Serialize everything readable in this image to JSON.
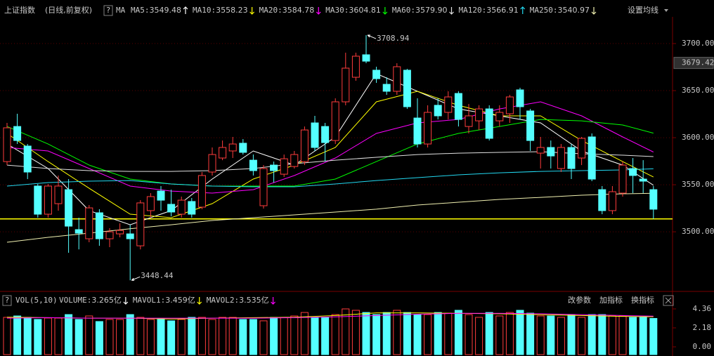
{
  "chart_data": [
    {
      "type": "candlestick",
      "title": "上证指数",
      "subtitle": "(日线,前复权)",
      "help": "?",
      "ma_title": "MA",
      "ma_settings": "设置均线",
      "up_color": "#ff3c3c",
      "down_color": "#54ffff",
      "open": [
        3574.6,
        3611.9,
        3591.1,
        3548.6,
        3518.7,
        3529.9,
        3544.8,
        3502.3,
        3492.6,
        3520.2,
        3492.6,
        3497.8,
        3497.8,
        3485.1,
        3522.5,
        3543.3,
        3529.2,
        3518.7,
        3532.2,
        3526.2,
        3563.5,
        3578.4,
        3585.9,
        3594.1,
        3576.1,
        3527.7,
        3570.9,
        3561.2,
        3569.4,
        3574.6,
        3615.7,
        3611.9,
        3597,
        3638.1,
        3664.2,
        3688.1,
        3671.7,
        3656.7,
        3649.3,
        3671.7,
        3620.9,
        3593.3,
        3634.4,
        3626.9,
        3647,
        3611.9,
        3617.9,
        3630.6,
        3617.9,
        3625.4,
        3650.8,
        3628.4,
        3583.6,
        3589.6,
        3567.2,
        3589.6,
        3578.4,
        3600.8,
        3544.8,
        3522.5,
        3541.1,
        3567.2,
        3556,
        3544.8
      ],
      "high": [
        3615.7,
        3625.4,
        3593.3,
        3550.8,
        3550.8,
        3559.8,
        3556,
        3515,
        3528.4,
        3524,
        3503.8,
        3509,
        3507.5,
        3533.6,
        3541.1,
        3548.6,
        3544.8,
        3537.4,
        3535.9,
        3563.5,
        3589.6,
        3597,
        3600.8,
        3598.5,
        3582.1,
        3570.9,
        3574.6,
        3582.1,
        3585.9,
        3611.9,
        3623.2,
        3615.7,
        3641.8,
        3690.3,
        3690.3,
        3708.94,
        3675.4,
        3664.2,
        3679.1,
        3673.1,
        3641.8,
        3634.4,
        3641.8,
        3649.3,
        3649.3,
        3635.8,
        3634.4,
        3634.4,
        3634.4,
        3645.5,
        3653,
        3630.6,
        3600.8,
        3597,
        3593.3,
        3593.3,
        3600.8,
        3604.5,
        3548.6,
        3548.6,
        3574.6,
        3578.4,
        3576.1,
        3548.6
      ],
      "low": [
        3570.9,
        3593.3,
        3556,
        3515,
        3515,
        3522.5,
        3477.7,
        3481.3,
        3488.9,
        3485.1,
        3483.7,
        3494.1,
        3448.44,
        3481.3,
        3515,
        3522.5,
        3516.5,
        3515,
        3515,
        3524,
        3559.8,
        3576.1,
        3578.4,
        3582.1,
        3559.8,
        3524.7,
        3552.3,
        3558.3,
        3567.2,
        3570.9,
        3585.9,
        3574.6,
        3593.3,
        3634.4,
        3660.5,
        3679.1,
        3658.2,
        3645.5,
        3645.5,
        3630.6,
        3589.6,
        3589.6,
        3619.4,
        3619.4,
        3611.9,
        3604.5,
        3608.2,
        3597,
        3611.9,
        3615.7,
        3619.4,
        3585.9,
        3567.2,
        3567.2,
        3563.5,
        3556,
        3570.9,
        3553.8,
        3518.7,
        3518.7,
        3537.4,
        3541.1,
        3541.1,
        3513.7
      ],
      "close": [
        3610.5,
        3597,
        3563.5,
        3518.7,
        3548.6,
        3548.6,
        3506,
        3498.6,
        3525.4,
        3492.6,
        3500,
        3501.5,
        3492.6,
        3530.7,
        3537.4,
        3533.6,
        3521,
        3533.6,
        3518.7,
        3559.8,
        3582.1,
        3589.6,
        3593.3,
        3584.4,
        3565,
        3567.2,
        3565,
        3577.6,
        3582.1,
        3608.2,
        3589.6,
        3594.8,
        3638.1,
        3673.9,
        3686.6,
        3681.3,
        3662.7,
        3649.3,
        3675.4,
        3632.9,
        3593.3,
        3626.9,
        3623.2,
        3643.3,
        3619.4,
        3623.2,
        3630.6,
        3599.3,
        3626.9,
        3643.3,
        3632.9,
        3597,
        3589.6,
        3580.6,
        3589.6,
        3567.2,
        3599.3,
        3556,
        3522.5,
        3542.6,
        3570.9,
        3559.8,
        3553.8,
        3524
      ],
      "ylim": [
        3438.9,
        3725.4
      ],
      "yticks": [
        {
          "value": 3700,
          "label": "3700.00"
        },
        {
          "value": 3650,
          "label": "3650.00"
        },
        {
          "value": 3600,
          "label": "3600.00"
        },
        {
          "value": 3550,
          "label": "3550.00"
        },
        {
          "value": 3500,
          "label": "3500.00"
        }
      ],
      "grid": true,
      "current_price": 3679.42,
      "reference_line": {
        "value": 3513.7,
        "color": "#ffff00"
      },
      "lines": [
        {
          "name": "MA5",
          "label": "MA5:",
          "color": "#ffffff",
          "trend": "up",
          "current": 3549.48,
          "x": [
            0,
            4,
            8,
            12,
            16,
            20,
            24,
            28,
            32,
            36,
            40,
            44,
            48,
            52,
            56,
            60,
            63
          ],
          "values": [
            3593.3,
            3567.2,
            3522.5,
            3507.5,
            3522.5,
            3556,
            3585.9,
            3570.9,
            3600.8,
            3668,
            3649.3,
            3630.6,
            3623.2,
            3615.7,
            3585.9,
            3570.9,
            3549.48
          ]
        },
        {
          "name": "MA10",
          "label": "MA10:",
          "color": "#ffff00",
          "trend": "down",
          "current": 3558.23,
          "x": [
            0,
            4,
            8,
            12,
            16,
            20,
            24,
            28,
            32,
            36,
            40,
            44,
            48,
            52,
            56,
            60,
            63
          ],
          "values": [
            3604.5,
            3574.6,
            3546.3,
            3518.7,
            3515,
            3529.9,
            3556,
            3570.9,
            3589.6,
            3638.1,
            3649.3,
            3634.4,
            3623.2,
            3623.2,
            3597,
            3574.6,
            3558.23
          ]
        },
        {
          "name": "MA20",
          "label": "MA20:",
          "color": "#ff00ff",
          "trend": "down",
          "current": 3584.78,
          "x": [
            0,
            4,
            8,
            12,
            16,
            20,
            24,
            28,
            32,
            36,
            40,
            44,
            48,
            52,
            56,
            60,
            63
          ],
          "values": [
            3589.6,
            3585.9,
            3567.2,
            3548.6,
            3543.3,
            3541.1,
            3544.8,
            3559.8,
            3578.4,
            3604.5,
            3615.7,
            3619.4,
            3630.6,
            3638.1,
            3623.2,
            3600.8,
            3584.78
          ]
        },
        {
          "name": "MA30",
          "label": "MA30:",
          "color": "#00ff00",
          "trend": "down",
          "current": 3604.81,
          "x": [
            0,
            4,
            8,
            12,
            16,
            20,
            24,
            28,
            32,
            36,
            40,
            44,
            48,
            52,
            56,
            60,
            63
          ],
          "values": [
            3611.9,
            3593.3,
            3570.9,
            3556,
            3550.8,
            3548.6,
            3548.6,
            3548.6,
            3556,
            3574.6,
            3593.3,
            3604.5,
            3611.9,
            3619.4,
            3617.9,
            3613.5,
            3604.81
          ]
        },
        {
          "name": "MA60",
          "label": "MA60:",
          "color": "#e0e0e0",
          "trend": "down",
          "current": {
            "value": 3579.9,
            "label": "3579.90"
          },
          "x": [
            0,
            4,
            8,
            12,
            16,
            20,
            24,
            28,
            32,
            36,
            40,
            44,
            48,
            52,
            56,
            60,
            63
          ],
          "values": [
            3570.9,
            3567.2,
            3565,
            3564.2,
            3564.2,
            3565,
            3567.2,
            3572.4,
            3576.1,
            3579.2,
            3582.1,
            3583.6,
            3584.4,
            3585.1,
            3582.9,
            3581.4,
            3579.9
          ]
        },
        {
          "name": "MA120",
          "label": "MA120:",
          "color": "#22d8f0",
          "trend": "up",
          "current": 3566.91,
          "x": [
            0,
            4,
            8,
            12,
            16,
            20,
            24,
            28,
            32,
            36,
            40,
            44,
            48,
            52,
            56,
            60,
            63
          ],
          "values": [
            3548.6,
            3552.3,
            3553.8,
            3554.5,
            3550.8,
            3548.6,
            3547.8,
            3547.8,
            3550.8,
            3554.5,
            3557.5,
            3560.5,
            3562.7,
            3564.2,
            3565,
            3565.7,
            3566.91
          ]
        },
        {
          "name": "MA250",
          "label": "MA250:",
          "color": "#f0f0b0",
          "trend": "down",
          "current": 3540.97,
          "x": [
            0,
            4,
            8,
            12,
            16,
            20,
            24,
            28,
            32,
            36,
            40,
            44,
            48,
            52,
            56,
            60,
            63
          ],
          "values": [
            3488.9,
            3494.1,
            3498.6,
            3503.2,
            3507.5,
            3512,
            3515,
            3518,
            3521,
            3524,
            3528.4,
            3531.4,
            3534.4,
            3536.6,
            3538.9,
            3540.4,
            3540.97
          ]
        }
      ]
    },
    {
      "type": "bar",
      "title": "VOL(5,10)",
      "help": "?",
      "label": "VOLUME:",
      "color": "#ffffff",
      "trend": "down",
      "current": {
        "value": 3.265,
        "label": "3.265亿"
      },
      "values": [
        3.39,
        3.55,
        3.39,
        3.15,
        3.31,
        3.31,
        3.71,
        3.15,
        3.55,
        2.91,
        3.15,
        3.15,
        3.71,
        3.39,
        3.15,
        3.15,
        2.99,
        3.15,
        3.39,
        3.39,
        3.15,
        3.39,
        3.39,
        3.15,
        3.15,
        2.99,
        3.39,
        3.39,
        3.55,
        3.95,
        3.39,
        3.39,
        3.71,
        4.36,
        4.2,
        3.95,
        3.71,
        3.95,
        4.2,
        3.95,
        3.71,
        3.71,
        3.95,
        3.87,
        4.2,
        3.71,
        3.39,
        3.95,
        3.55,
        3.95,
        4.2,
        3.87,
        3.55,
        3.55,
        3.39,
        3.71,
        3.39,
        3.71,
        3.71,
        3.55,
        3.55,
        3.39,
        3.39,
        3.265
      ],
      "ylim": [
        -0.89,
        5.0
      ],
      "yticks": [
        4.36,
        2.18,
        {
          "value": 0,
          "label": "0.00"
        }
      ],
      "buttons": [
        "改参数",
        "加指标",
        "换指标"
      ],
      "lines": [
        {
          "name": "MAVOL1",
          "label": "MAVOL1:",
          "color": "#ffff00",
          "trend": "down",
          "current": {
            "value": 3.459,
            "label": "3.459亿"
          },
          "x": [
            0,
            4,
            8,
            12,
            16,
            20,
            24,
            28,
            32,
            36,
            40,
            44,
            48,
            52,
            56,
            60,
            63
          ],
          "values": [
            3.4,
            3.35,
            3.3,
            3.3,
            3.2,
            3.3,
            3.35,
            3.4,
            3.6,
            3.9,
            3.9,
            3.85,
            3.8,
            3.7,
            3.6,
            3.5,
            3.459
          ]
        },
        {
          "name": "MAVOL2",
          "label": "MAVOL2:",
          "color": "#ff00ff",
          "trend": "down",
          "current": {
            "value": 3.535,
            "label": "3.535亿"
          },
          "x": [
            0,
            4,
            8,
            12,
            16,
            20,
            24,
            28,
            32,
            36,
            40,
            44,
            48,
            52,
            56,
            60,
            63
          ],
          "values": [
            3.3,
            3.35,
            3.3,
            3.3,
            3.3,
            3.3,
            3.3,
            3.35,
            3.45,
            3.6,
            3.75,
            3.85,
            3.85,
            3.8,
            3.7,
            3.6,
            3.535
          ]
        }
      ]
    }
  ]
}
